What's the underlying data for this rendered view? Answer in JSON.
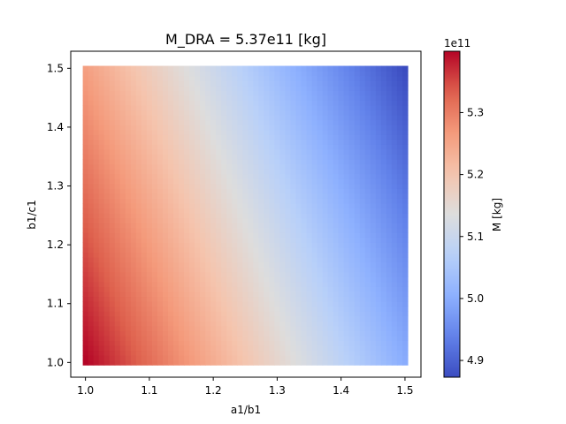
{
  "chart_data": {
    "type": "heatmap",
    "title": "M_DRA = 5.37e11 [kg]",
    "xlabel": "a1/b1",
    "ylabel": "b1/c1",
    "xlim": [
      0.977,
      1.525
    ],
    "ylim": [
      0.975,
      1.529
    ],
    "x_range": [
      1.0,
      1.5
    ],
    "y_range": [
      1.0,
      1.5
    ],
    "grid_cells": 61,
    "x_ticks": [
      "1.0",
      "1.1",
      "1.2",
      "1.3",
      "1.4",
      "1.5"
    ],
    "y_ticks": [
      "1.0",
      "1.1",
      "1.2",
      "1.3",
      "1.4",
      "1.5"
    ],
    "colormap": "coolwarm",
    "colorbar": {
      "label": "M [kg]",
      "multiplier": "1e11",
      "vmin": 4.873,
      "vmax": 5.399,
      "ticks": [
        "4.9",
        "5.0",
        "5.1",
        "5.2",
        "5.3"
      ]
    },
    "model": {
      "description": "M(x,y) scalar field, values in units of 1e11 kg",
      "corners": {
        "x1.0_y1.0": 5.399,
        "x1.5_y1.0": 5.0,
        "x1.0_y1.5": 5.26,
        "x1.5_y1.5": 4.873
      }
    }
  }
}
